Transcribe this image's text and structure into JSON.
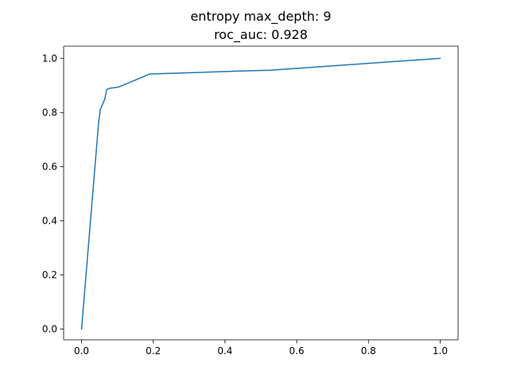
{
  "chart_data": {
    "type": "line",
    "title_lines": [
      "entropy max_depth: 9",
      "roc_auc: 0.928"
    ],
    "xlabel": "",
    "ylabel": "",
    "xlim": [
      -0.05,
      1.05
    ],
    "ylim": [
      -0.04,
      1.045
    ],
    "xticks": [
      0.0,
      0.2,
      0.4,
      0.6,
      0.8,
      1.0
    ],
    "yticks": [
      0.0,
      0.2,
      0.4,
      0.6,
      0.8,
      1.0
    ],
    "xtick_labels": [
      "0.0",
      "0.2",
      "0.4",
      "0.6",
      "0.8",
      "1.0"
    ],
    "ytick_labels": [
      "0.0",
      "0.2",
      "0.4",
      "0.6",
      "0.8",
      "1.0"
    ],
    "grid": false,
    "series": [
      {
        "color": "#1f77b4",
        "x": [
          0.0,
          0.048,
          0.05,
          0.052,
          0.065,
          0.07,
          0.08,
          0.095,
          0.105,
          0.19,
          0.44,
          0.525,
          1.0
        ],
        "y": [
          0.0,
          0.77,
          0.785,
          0.81,
          0.85,
          0.885,
          0.89,
          0.892,
          0.895,
          0.942,
          0.953,
          0.956,
          1.0
        ]
      }
    ]
  }
}
